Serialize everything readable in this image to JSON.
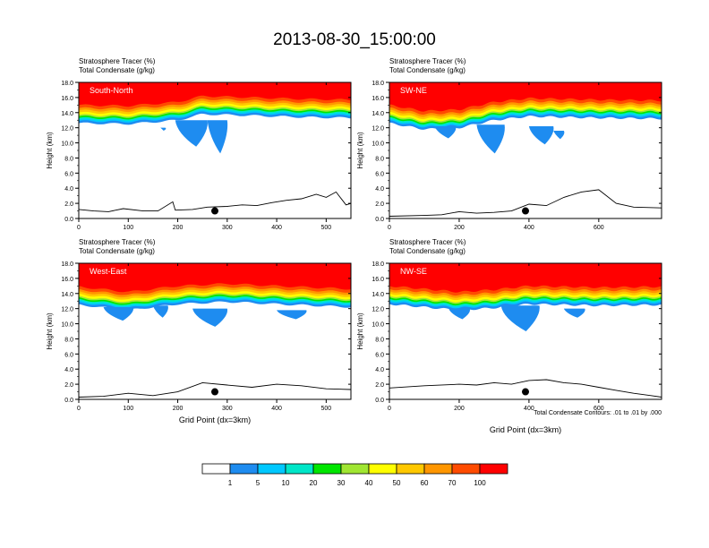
{
  "title": "2013-08-30_15:00:00",
  "panel_title_line1": "Stratosphere Tracer   (%)",
  "panel_title_line2": "Total Condensate   (g/kg)",
  "ylabel": "Height (km)",
  "xlabel": "Grid Point (dx=3km)",
  "contour_note": "Total Condensate Contours: .01 to .01 by .000",
  "colors": {
    "levels": [
      "#ffffff",
      "#1e8cf0",
      "#00c8ff",
      "#00e6c8",
      "#00e600",
      "#a0e632",
      "#ffff00",
      "#ffc800",
      "#ff9600",
      "#ff4b00",
      "#ff0000"
    ],
    "axis": "#000000"
  },
  "chart_data": [
    {
      "type": "contour",
      "name": "South-North",
      "label": "South-North",
      "xlim": [
        0,
        550
      ],
      "ylim": [
        0,
        18
      ],
      "xticks": [
        0,
        100,
        200,
        300,
        400,
        500
      ],
      "yticks": [
        0.0,
        2.0,
        4.0,
        6.0,
        8.0,
        10.0,
        12.0,
        14.0,
        16.0,
        18.0
      ],
      "tracer_base_km": [
        [
          0,
          12.6
        ],
        [
          100,
          12.5
        ],
        [
          200,
          13.0
        ],
        [
          250,
          13.8
        ],
        [
          350,
          13.6
        ],
        [
          450,
          13.4
        ],
        [
          550,
          13.3
        ]
      ],
      "tracer_bands_km_above_base": [
        0,
        0.3,
        0.5,
        0.7,
        0.9,
        1.1,
        1.4,
        1.7,
        2.0,
        2.4
      ],
      "blue_intrusions": [
        {
          "x": [
            195,
            260
          ],
          "y": [
            9.5,
            13.0
          ]
        },
        {
          "x": [
            260,
            300
          ],
          "y": [
            8.6,
            13.0
          ]
        },
        {
          "x": [
            165,
            175
          ],
          "y": [
            11.6,
            12.0
          ]
        }
      ],
      "terrain_km": [
        [
          0,
          1.2
        ],
        [
          30,
          1.0
        ],
        [
          60,
          0.9
        ],
        [
          90,
          1.3
        ],
        [
          130,
          1.0
        ],
        [
          160,
          1.0
        ],
        [
          190,
          2.2
        ],
        [
          195,
          1.1
        ],
        [
          230,
          1.2
        ],
        [
          260,
          1.5
        ],
        [
          300,
          1.6
        ],
        [
          330,
          1.8
        ],
        [
          360,
          1.7
        ],
        [
          390,
          2.1
        ],
        [
          420,
          2.4
        ],
        [
          450,
          2.6
        ],
        [
          480,
          3.2
        ],
        [
          500,
          2.8
        ],
        [
          520,
          3.5
        ],
        [
          540,
          1.8
        ],
        [
          550,
          2.0
        ]
      ],
      "marker": {
        "x": 275,
        "y": 1.0
      }
    },
    {
      "type": "contour",
      "name": "SW-NE",
      "label": "SW-NE",
      "xlim": [
        0,
        780
      ],
      "ylim": [
        0,
        18
      ],
      "xticks": [
        0,
        200,
        400,
        600
      ],
      "yticks": [
        0.0,
        2.0,
        4.0,
        6.0,
        8.0,
        10.0,
        12.0,
        14.0,
        16.0,
        18.0
      ],
      "tracer_base_km": [
        [
          0,
          12.6
        ],
        [
          100,
          11.8
        ],
        [
          200,
          12.0
        ],
        [
          300,
          13.0
        ],
        [
          400,
          13.5
        ],
        [
          600,
          13.3
        ],
        [
          780,
          13.2
        ]
      ],
      "tracer_bands_km_above_base": [
        0,
        0.3,
        0.5,
        0.7,
        0.9,
        1.1,
        1.4,
        1.7,
        2.0,
        2.4
      ],
      "blue_intrusions": [
        {
          "x": [
            130,
            190
          ],
          "y": [
            10.6,
            12.2
          ]
        },
        {
          "x": [
            250,
            330
          ],
          "y": [
            8.6,
            12.4
          ]
        },
        {
          "x": [
            400,
            470
          ],
          "y": [
            9.8,
            12.2
          ]
        },
        {
          "x": [
            470,
            500
          ],
          "y": [
            10.5,
            11.6
          ]
        }
      ],
      "terrain_km": [
        [
          0,
          0.3
        ],
        [
          100,
          0.4
        ],
        [
          150,
          0.5
        ],
        [
          200,
          0.9
        ],
        [
          250,
          0.7
        ],
        [
          300,
          0.8
        ],
        [
          350,
          1.0
        ],
        [
          400,
          1.9
        ],
        [
          450,
          1.7
        ],
        [
          500,
          2.8
        ],
        [
          550,
          3.5
        ],
        [
          600,
          3.8
        ],
        [
          650,
          2.0
        ],
        [
          700,
          1.5
        ],
        [
          780,
          1.4
        ]
      ],
      "marker": {
        "x": 390,
        "y": 1.0
      }
    },
    {
      "type": "contour",
      "name": "West-East",
      "label": "West-East",
      "xlim": [
        0,
        550
      ],
      "ylim": [
        0,
        18
      ],
      "xticks": [
        0,
        100,
        200,
        300,
        400,
        500
      ],
      "yticks": [
        0.0,
        2.0,
        4.0,
        6.0,
        8.0,
        10.0,
        12.0,
        14.0,
        16.0,
        18.0
      ],
      "tracer_base_km": [
        [
          0,
          12.5
        ],
        [
          100,
          11.8
        ],
        [
          200,
          12.6
        ],
        [
          300,
          12.9
        ],
        [
          400,
          12.6
        ],
        [
          550,
          12.2
        ]
      ],
      "tracer_bands_km_above_base": [
        0,
        0.3,
        0.5,
        0.7,
        0.9,
        1.1,
        1.4,
        1.7,
        2.0,
        2.4
      ],
      "blue_intrusions": [
        {
          "x": [
            50,
            110
          ],
          "y": [
            10.4,
            12.2
          ]
        },
        {
          "x": [
            150,
            180
          ],
          "y": [
            10.8,
            12.4
          ]
        },
        {
          "x": [
            230,
            300
          ],
          "y": [
            9.6,
            12.0
          ]
        },
        {
          "x": [
            400,
            460
          ],
          "y": [
            10.6,
            11.8
          ]
        }
      ],
      "terrain_km": [
        [
          0,
          0.3
        ],
        [
          50,
          0.4
        ],
        [
          100,
          0.8
        ],
        [
          150,
          0.5
        ],
        [
          200,
          1.0
        ],
        [
          250,
          2.2
        ],
        [
          300,
          1.9
        ],
        [
          350,
          1.6
        ],
        [
          400,
          2.0
        ],
        [
          450,
          1.8
        ],
        [
          500,
          1.4
        ],
        [
          550,
          1.3
        ]
      ],
      "marker": {
        "x": 275,
        "y": 1.0
      }
    },
    {
      "type": "contour",
      "name": "NW-SE",
      "label": "NW-SE",
      "xlim": [
        0,
        780
      ],
      "ylim": [
        0,
        18
      ],
      "xticks": [
        0,
        200,
        400,
        600
      ],
      "yticks": [
        0.0,
        2.0,
        4.0,
        6.0,
        8.0,
        10.0,
        12.0,
        14.0,
        16.0,
        18.0
      ],
      "tracer_base_km": [
        [
          0,
          12.6
        ],
        [
          200,
          11.8
        ],
        [
          300,
          12.1
        ],
        [
          400,
          12.6
        ],
        [
          600,
          12.4
        ],
        [
          780,
          12.5
        ]
      ],
      "tracer_bands_km_above_base": [
        0,
        0.3,
        0.5,
        0.7,
        0.9,
        1.1,
        1.4,
        1.7,
        2.0,
        2.4
      ],
      "blue_intrusions": [
        {
          "x": [
            170,
            230
          ],
          "y": [
            10.6,
            12.0
          ]
        },
        {
          "x": [
            320,
            430
          ],
          "y": [
            9.0,
            12.4
          ]
        },
        {
          "x": [
            500,
            560
          ],
          "y": [
            10.8,
            12.0
          ]
        }
      ],
      "terrain_km": [
        [
          0,
          1.5
        ],
        [
          100,
          1.8
        ],
        [
          200,
          2.0
        ],
        [
          250,
          1.9
        ],
        [
          300,
          2.2
        ],
        [
          350,
          2.0
        ],
        [
          400,
          2.5
        ],
        [
          450,
          2.6
        ],
        [
          500,
          2.2
        ],
        [
          550,
          2.0
        ],
        [
          600,
          1.6
        ],
        [
          650,
          1.2
        ],
        [
          700,
          0.8
        ],
        [
          750,
          0.5
        ],
        [
          780,
          0.3
        ]
      ],
      "marker": {
        "x": 390,
        "y": 1.0
      }
    }
  ],
  "colorbar_labels": [
    "1",
    "5",
    "10",
    "20",
    "30",
    "40",
    "50",
    "60",
    "70",
    "100"
  ]
}
